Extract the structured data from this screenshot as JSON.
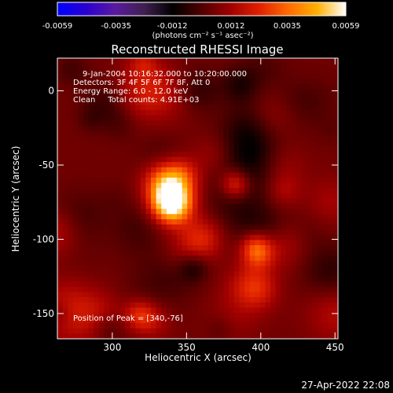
{
  "chart_data": {
    "type": "heatmap",
    "title": "Reconstructed RHESSI Image",
    "xlabel": "Heliocentric X (arcsec)",
    "ylabel": "Heliocentric Y (arcsec)",
    "xlim": [
      263,
      452
    ],
    "ylim": [
      -167,
      22
    ],
    "x_ticks": [
      300,
      350,
      400,
      450
    ],
    "y_ticks": [
      0,
      -50,
      -100,
      -150
    ],
    "colorbar": {
      "ticks": [
        "-0.0059",
        "-0.0035",
        "-0.0012",
        "0.0012",
        "0.0035",
        "0.0059"
      ],
      "range": [
        -0.0059,
        0.0059
      ],
      "unit_label": "(photons cm⁻² s⁻¹ asec⁻²)",
      "stops": [
        "#0000ff",
        "#2a00d0",
        "#5a1aa0",
        "#402050",
        "#000000",
        "#500000",
        "#a00000",
        "#e02000",
        "#ff6a00",
        "#ffb000",
        "#ffffff"
      ]
    },
    "annotations": [
      "9-Jan-2004 10:16:32.000 to 10:20:00.000",
      "Detectors: 3F 4F 5F 6F 7F 8F, Att 0",
      "Energy Range: 6.0 - 12.0 keV",
      "Clean     Total counts: 4.91E+03"
    ],
    "peak_label": "Position of Peak = [340,-76]",
    "peak": {
      "x": 340,
      "y": -76,
      "value": 0.0059
    },
    "sources": [
      {
        "x": 340,
        "y": -76,
        "sigma": 9,
        "amp": 1.0
      },
      {
        "x": 336,
        "y": -62,
        "sigma": 10,
        "amp": 0.55
      },
      {
        "x": 383,
        "y": -63,
        "sigma": 7,
        "amp": 0.45
      },
      {
        "x": 398,
        "y": -109,
        "sigma": 8,
        "amp": 0.45
      },
      {
        "x": 360,
        "y": -100,
        "sigma": 10,
        "amp": 0.3
      }
    ],
    "background_level": 0.08
  },
  "timestamp": "27-Apr-2022 22:08"
}
